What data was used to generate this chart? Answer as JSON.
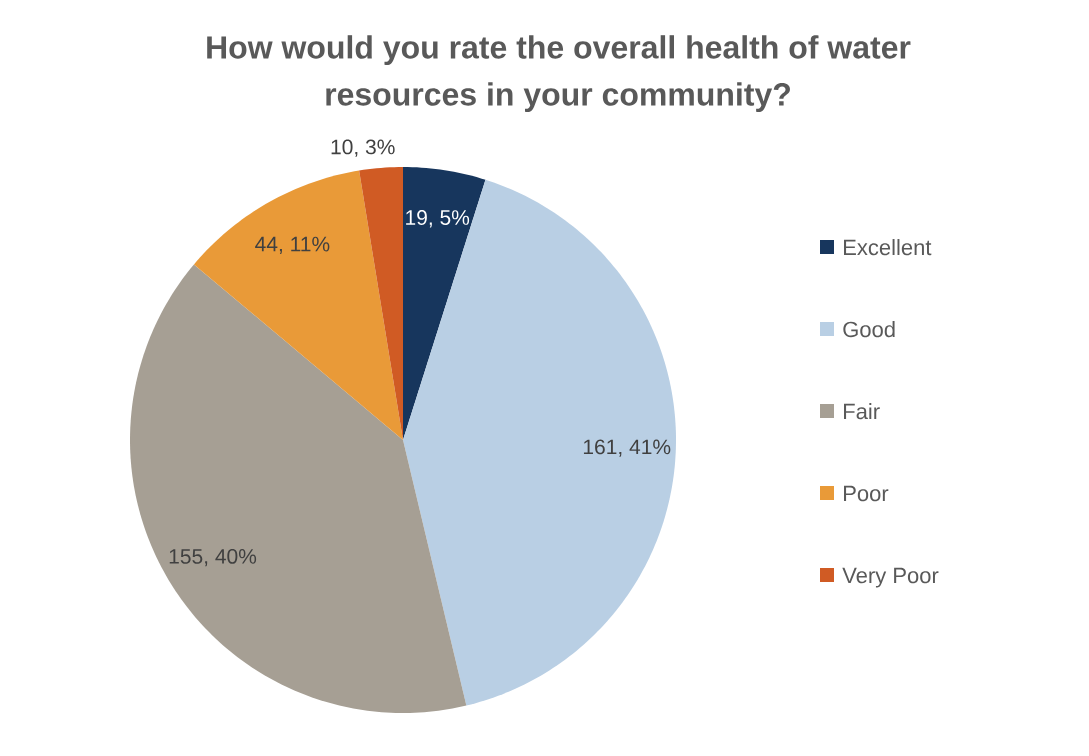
{
  "chart_data": {
    "type": "pie",
    "title": "How would you rate the overall health of water resources in your community?",
    "categories": [
      "Excellent",
      "Good",
      "Fair",
      "Poor",
      "Very Poor"
    ],
    "values": [
      19,
      161,
      155,
      44,
      10
    ],
    "colors": [
      "#17365d",
      "#b9cfe4",
      "#a69f94",
      "#e99a38",
      "#d05b24"
    ],
    "value_labels": [
      "19, 5%",
      "161, 41%",
      "155, 40%",
      "44, 11%",
      "10, 3%"
    ],
    "legend": "right"
  }
}
